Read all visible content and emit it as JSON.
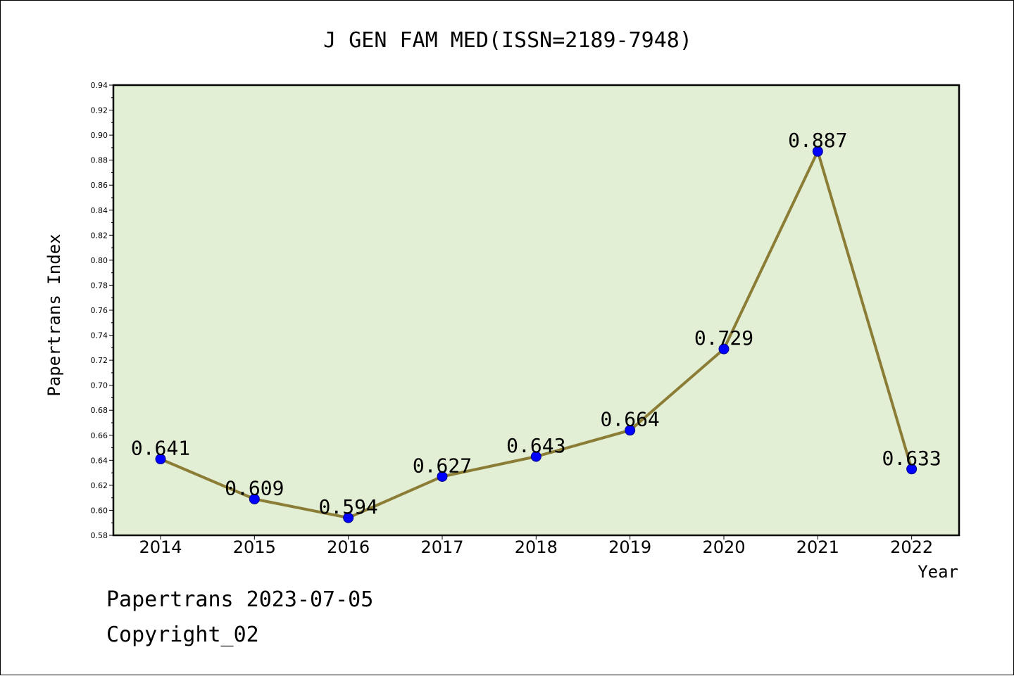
{
  "chart_data": {
    "type": "line",
    "title": "J GEN FAM MED(ISSN=2189-7948)",
    "xlabel": "Year",
    "ylabel": "Papertrans Index",
    "categories": [
      "2014",
      "2015",
      "2016",
      "2017",
      "2018",
      "2019",
      "2020",
      "2021",
      "2022"
    ],
    "series": [
      {
        "values": [
          0.641,
          0.609,
          0.594,
          0.627,
          0.643,
          0.664,
          0.729,
          0.887,
          0.633
        ],
        "data_labels": [
          "0.641",
          "0.609",
          "0.594",
          "0.627",
          "0.643",
          "0.664",
          "0.729",
          "0.887",
          "0.633"
        ]
      }
    ],
    "ylim": [
      0.58,
      0.94
    ],
    "yticks": [
      "0.58",
      "0.60",
      "0.62",
      "0.64",
      "0.66",
      "0.68",
      "0.70",
      "0.72",
      "0.74",
      "0.76",
      "0.78",
      "0.80",
      "0.82",
      "0.84",
      "0.86",
      "0.88",
      "0.90",
      "0.92",
      "0.94"
    ],
    "grid": false,
    "legend": "none"
  },
  "footer": {
    "line1": "Papertrans 2023-07-05",
    "line2": "Copyright_02"
  },
  "colors": {
    "plot_background": "#e2efd4",
    "line": "#8b7d36",
    "marker": "#0000ff",
    "axis": "#000000"
  }
}
